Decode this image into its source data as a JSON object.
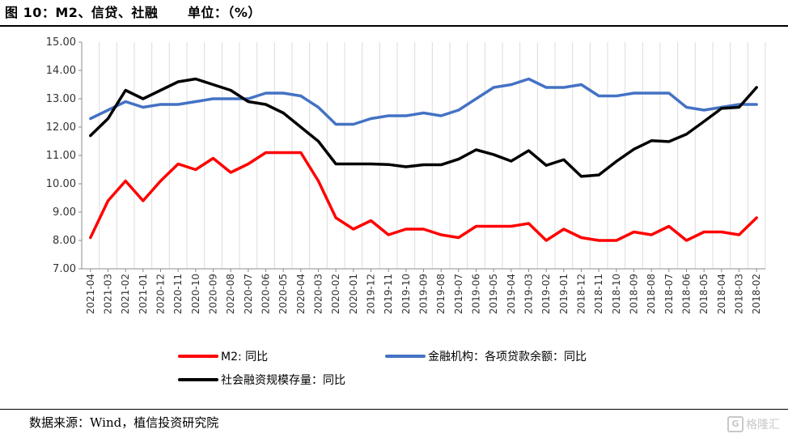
{
  "title": "图 10：M2、信贷、社融      单位：（%）",
  "source": "数据来源：Wind，植信投资研究院",
  "watermark": "格隆汇",
  "chart_data": {
    "type": "line",
    "x": [
      "2021-04",
      "2021-03",
      "2021-02",
      "2021-01",
      "2020-12",
      "2020-11",
      "2020-10",
      "2020-09",
      "2020-08",
      "2020-07",
      "2020-06",
      "2020-05",
      "2020-04",
      "2020-03",
      "2020-02",
      "2020-01",
      "2019-12",
      "2019-11",
      "2019-10",
      "2019-09",
      "2019-08",
      "2019-07",
      "2019-06",
      "2019-05",
      "2019-04",
      "2019-03",
      "2019-02",
      "2019-01",
      "2018-12",
      "2018-11",
      "2018-10",
      "2018-09",
      "2018-08",
      "2018-07",
      "2018-06",
      "2018-05",
      "2018-04",
      "2018-03",
      "2018-02"
    ],
    "ylim": [
      7,
      15
    ],
    "yticks": [
      "7.00",
      "8.00",
      "9.00",
      "10.00",
      "11.00",
      "12.00",
      "13.00",
      "14.00",
      "15.00"
    ],
    "grid": "vertical",
    "legend_position": "bottom",
    "series": [
      {
        "name": "M2: 同比",
        "color": "#ff0000",
        "values": [
          8.1,
          9.4,
          10.1,
          9.4,
          10.1,
          10.7,
          10.5,
          10.9,
          10.4,
          10.7,
          11.1,
          11.1,
          11.1,
          10.1,
          8.8,
          8.4,
          8.7,
          8.2,
          8.4,
          8.4,
          8.2,
          8.1,
          8.5,
          8.5,
          8.5,
          8.6,
          8.0,
          8.4,
          8.1,
          8.0,
          8.0,
          8.3,
          8.2,
          8.5,
          8.0,
          8.3,
          8.3,
          8.2,
          8.8
        ]
      },
      {
        "name": "金融机构：各项贷款余额：同比",
        "color": "#4472c4",
        "values": [
          12.3,
          12.6,
          12.9,
          12.7,
          12.8,
          12.8,
          12.9,
          13.0,
          13.0,
          13.0,
          13.2,
          13.2,
          13.1,
          12.7,
          12.1,
          12.1,
          12.3,
          12.4,
          12.4,
          12.5,
          12.4,
          12.6,
          13.0,
          13.4,
          13.5,
          13.7,
          13.4,
          13.4,
          13.5,
          13.1,
          13.1,
          13.2,
          13.2,
          13.2,
          12.7,
          12.6,
          12.7,
          12.8,
          12.8
        ]
      },
      {
        "name": "社会融资规模存量：同比",
        "color": "#000000",
        "values": [
          11.7,
          12.3,
          13.3,
          13.0,
          13.3,
          13.6,
          13.7,
          13.5,
          13.3,
          12.9,
          12.8,
          12.5,
          12.0,
          11.5,
          10.7,
          10.7,
          10.7,
          10.68,
          10.6,
          10.67,
          10.67,
          10.87,
          11.2,
          11.03,
          10.8,
          11.17,
          10.65,
          10.85,
          10.26,
          10.31,
          10.79,
          11.22,
          11.52,
          11.49,
          11.75,
          12.2,
          12.66,
          12.7,
          13.4
        ]
      }
    ]
  }
}
